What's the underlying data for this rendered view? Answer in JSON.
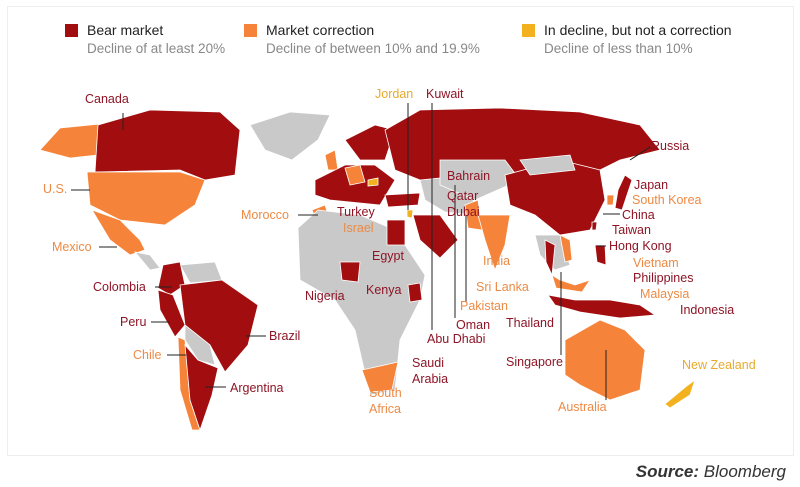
{
  "colors": {
    "bear": "#a20d0f",
    "correction": "#f5843a",
    "decline": "#f3b11f",
    "no_data": "#c9c9c9"
  },
  "legend": [
    {
      "title": "Bear market",
      "subtitle": "Decline of at least 20%",
      "color": "#a20d0f"
    },
    {
      "title": "Market correction",
      "subtitle": "Decline of between 10% and 19.9%",
      "color": "#f5843a"
    },
    {
      "title": "In decline, but not a correction",
      "subtitle": "Decline of less than 10%",
      "color": "#f3b11f"
    }
  ],
  "countries": {
    "bear": [
      "Canada",
      "Colombia",
      "Peru",
      "Brazil",
      "Argentina",
      "Nigeria",
      "Kenya",
      "Turkey",
      "Egypt",
      "Saudi Arabia",
      "Kuwait",
      "Bahrain",
      "Qatar",
      "Dubai",
      "Abu Dhabi",
      "Oman",
      "Russia",
      "China",
      "Japan",
      "Taiwan",
      "Hong Kong",
      "Philippines",
      "Indonesia",
      "Thailand",
      "Singapore"
    ],
    "correction": [
      "U.S.",
      "Mexico",
      "Chile",
      "Morocco",
      "Israel",
      "South Africa",
      "India",
      "Pakistan",
      "Sri Lanka",
      "Vietnam",
      "Malaysia",
      "South Korea",
      "Australia"
    ],
    "decline": [
      "Jordan",
      "New Zealand"
    ]
  },
  "labels": {
    "canada": "Canada",
    "us": "U.S.",
    "mexico": "Mexico",
    "colombia": "Colombia",
    "peru": "Peru",
    "chile": "Chile",
    "brazil": "Brazil",
    "argentina": "Argentina",
    "morocco": "Morocco",
    "turkey": "Turkey",
    "israel": "Israel",
    "egypt": "Egypt",
    "nigeria": "Nigeria",
    "kenya": "Kenya",
    "south_africa_1": "South",
    "south_africa_2": "Africa",
    "jordan": "Jordan",
    "kuwait": "Kuwait",
    "bahrain": "Bahrain",
    "qatar": "Qatar",
    "dubai": "Dubai",
    "saudi_1": "Saudi",
    "saudi_2": "Arabia",
    "abu_dhabi": "Abu Dhabi",
    "oman": "Oman",
    "pakistan": "Pakistan",
    "india": "India",
    "sri_lanka": "Sri Lanka",
    "thailand": "Thailand",
    "singapore": "Singapore",
    "russia": "Russia",
    "japan": "Japan",
    "south_korea": "South Korea",
    "china": "China",
    "taiwan": "Taiwan",
    "hong_kong": "Hong Kong",
    "vietnam": "Vietnam",
    "philippines": "Philippines",
    "malaysia": "Malaysia",
    "indonesia": "Indonesia",
    "australia": "Australia",
    "new_zealand": "New Zealand"
  },
  "source": {
    "label": "Source:",
    "value": "Bloomberg"
  }
}
